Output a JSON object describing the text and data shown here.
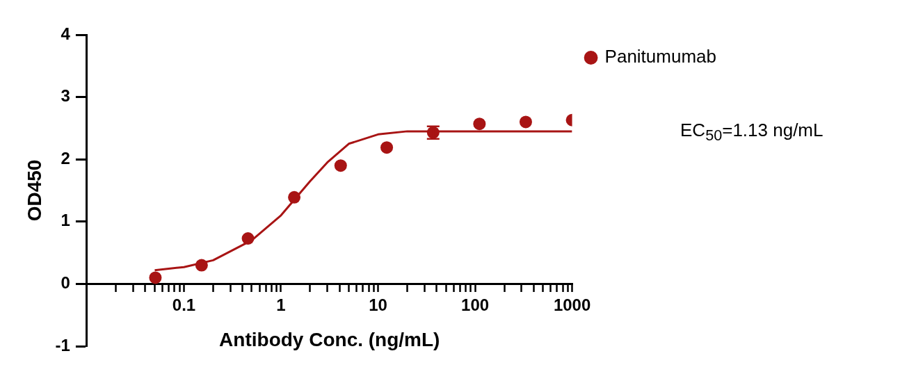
{
  "chart_data": {
    "type": "scatter",
    "xlabel": "Antibody Conc. (ng/mL)",
    "ylabel": "OD450",
    "log": "x",
    "legend": "top right",
    "grid": false,
    "xlim": [
      0.01,
      1000
    ],
    "xticks": [
      {
        "value": 0.02,
        "label": null
      },
      {
        "value": 0.03,
        "label": null
      },
      {
        "value": 0.04,
        "label": null
      },
      {
        "value": 0.05,
        "label": null
      },
      {
        "value": 0.06,
        "label": null
      },
      {
        "value": 0.07,
        "label": null
      },
      {
        "value": 0.08,
        "label": null
      },
      {
        "value": 0.09,
        "label": null
      },
      0.1,
      {
        "value": 0.2,
        "label": null
      },
      {
        "value": 0.3,
        "label": null
      },
      {
        "value": 0.4,
        "label": null
      },
      {
        "value": 0.5,
        "label": null
      },
      {
        "value": 0.6,
        "label": null
      },
      {
        "value": 0.7,
        "label": null
      },
      {
        "value": 0.8,
        "label": null
      },
      {
        "value": 0.9,
        "label": null
      },
      1,
      {
        "value": 2,
        "label": null
      },
      {
        "value": 3,
        "label": null
      },
      {
        "value": 4,
        "label": null
      },
      {
        "value": 5,
        "label": null
      },
      {
        "value": 6,
        "label": null
      },
      {
        "value": 7,
        "label": null
      },
      {
        "value": 8,
        "label": null
      },
      {
        "value": 9,
        "label": null
      },
      10,
      {
        "value": 20,
        "label": null
      },
      {
        "value": 30,
        "label": null
      },
      {
        "value": 40,
        "label": null
      },
      {
        "value": 50,
        "label": null
      },
      {
        "value": 60,
        "label": null
      },
      {
        "value": 70,
        "label": null
      },
      {
        "value": 80,
        "label": null
      },
      {
        "value": 90,
        "label": null
      },
      100,
      {
        "value": 200,
        "label": null
      },
      {
        "value": 300,
        "label": null
      },
      {
        "value": 400,
        "label": null
      },
      {
        "value": 500,
        "label": null
      },
      {
        "value": 600,
        "label": null
      },
      {
        "value": 700,
        "label": null
      },
      {
        "value": 800,
        "label": null
      },
      {
        "value": 900,
        "label": null
      },
      1000
    ],
    "ylim": [
      -1,
      4
    ],
    "yticks": [
      -1,
      0,
      1,
      2,
      3,
      4
    ],
    "series": [
      {
        "name": "Panitumumab",
        "type": "scatter",
        "marker": "circle",
        "color": "#a81414",
        "x": [
          0.0508,
          0.152,
          0.457,
          1.37,
          4.12,
          12.3,
          37,
          111,
          333,
          1000
        ],
        "values": [
          0.1,
          0.3,
          0.73,
          1.39,
          1.9,
          2.19,
          2.43,
          2.57,
          2.6,
          2.63
        ],
        "errors": [
          null,
          null,
          null,
          null,
          null,
          null,
          0.1,
          null,
          null,
          null
        ]
      },
      {
        "type": "line",
        "marker": "none",
        "color": "#a81414",
        "x": [
          0.05,
          0.1,
          0.2,
          0.5,
          1,
          2,
          3,
          5,
          10,
          20,
          100,
          1000
        ],
        "values": [
          0.22,
          0.27,
          0.38,
          0.7,
          1.1,
          1.65,
          1.95,
          2.25,
          2.4,
          2.45,
          2.45,
          2.45
        ]
      }
    ],
    "annotations": [
      "EC$_{50}$=1.13 ng/mL"
    ]
  }
}
